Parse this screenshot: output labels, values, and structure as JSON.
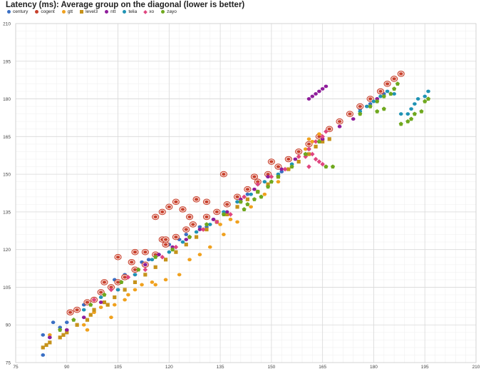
{
  "chart_data": {
    "type": "scatter",
    "title": "Latency (ms): Average group on the diagonal (lower is better)",
    "xlabel": "",
    "ylabel": "",
    "xlim": [
      75,
      210
    ],
    "ylim": [
      75,
      210
    ],
    "xticks": [
      75,
      90,
      105,
      120,
      135,
      150,
      165,
      180,
      195,
      210
    ],
    "yticks": [
      75,
      90,
      105,
      120,
      135,
      150,
      165,
      180,
      195,
      210
    ],
    "grid": true,
    "legend_position": "top-left",
    "series": [
      {
        "name": "century",
        "color": "#3a6fc4",
        "marker": "circle",
        "points": [
          [
            83,
            78
          ],
          [
            83,
            86
          ],
          [
            85,
            85
          ],
          [
            86,
            91
          ],
          [
            88,
            89
          ],
          [
            90,
            91
          ],
          [
            93,
            96
          ],
          [
            95,
            98
          ],
          [
            100,
            103
          ],
          [
            104,
            108
          ],
          [
            107,
            110
          ],
          [
            112,
            115
          ],
          [
            114,
            116
          ],
          [
            117,
            118
          ],
          [
            120,
            122
          ],
          [
            123,
            124
          ],
          [
            125,
            126
          ],
          [
            129,
            129
          ],
          [
            131,
            129
          ],
          [
            133,
            132
          ],
          [
            137,
            134
          ],
          [
            140,
            139
          ],
          [
            143,
            142
          ],
          [
            146,
            146
          ],
          [
            149,
            149
          ],
          [
            153,
            151
          ],
          [
            156,
            154
          ],
          [
            160,
            158
          ],
          [
            176,
            176
          ],
          [
            179,
            178
          ],
          [
            181,
            180
          ],
          [
            183,
            182
          ]
        ]
      },
      {
        "name": "cogent",
        "color": "#c7402c",
        "marker": "ring",
        "points": [
          [
            91,
            95
          ],
          [
            93,
            96
          ],
          [
            96,
            99
          ],
          [
            98,
            100
          ],
          [
            100,
            103
          ],
          [
            103,
            105
          ],
          [
            105,
            107
          ],
          [
            107,
            109
          ],
          [
            110,
            112
          ],
          [
            113,
            114
          ],
          [
            116,
            118
          ],
          [
            119,
            122
          ],
          [
            122,
            125
          ],
          [
            125,
            128
          ],
          [
            127,
            130
          ],
          [
            131,
            133
          ],
          [
            134,
            135
          ],
          [
            137,
            138
          ],
          [
            140,
            141
          ],
          [
            143,
            144
          ],
          [
            146,
            147
          ],
          [
            149,
            150
          ],
          [
            152,
            153
          ],
          [
            155,
            156
          ],
          [
            158,
            159
          ],
          [
            161,
            162
          ],
          [
            164,
            165
          ],
          [
            167,
            168
          ],
          [
            170,
            171
          ],
          [
            173,
            174
          ],
          [
            176,
            177
          ],
          [
            179,
            180
          ],
          [
            182,
            183
          ],
          [
            184,
            186
          ],
          [
            186,
            188
          ],
          [
            188,
            190
          ],
          [
            116,
            133
          ],
          [
            118,
            135
          ],
          [
            120,
            137
          ],
          [
            122,
            139
          ],
          [
            124,
            136
          ],
          [
            126,
            133
          ],
          [
            128,
            140
          ],
          [
            131,
            139
          ],
          [
            136,
            150
          ],
          [
            145,
            149
          ],
          [
            150,
            155
          ],
          [
            101,
            107
          ],
          [
            109,
            115
          ],
          [
            113,
            119
          ],
          [
            118,
            124
          ],
          [
            110,
            119
          ],
          [
            119,
            124
          ],
          [
            105,
            117
          ]
        ]
      },
      {
        "name": "gtt",
        "color": "#f0a11e",
        "marker": "circle",
        "points": [
          [
            85,
            86
          ],
          [
            90,
            88
          ],
          [
            95,
            90
          ],
          [
            98,
            95
          ],
          [
            100,
            97
          ],
          [
            104,
            98
          ],
          [
            108,
            102
          ],
          [
            110,
            104
          ],
          [
            112,
            106
          ],
          [
            115,
            107
          ],
          [
            119,
            108
          ],
          [
            123,
            110
          ],
          [
            126,
            116
          ],
          [
            129,
            118
          ],
          [
            132,
            121
          ],
          [
            136,
            126
          ],
          [
            140,
            131
          ],
          [
            144,
            137
          ],
          [
            148,
            142
          ],
          [
            152,
            147
          ],
          [
            155,
            152
          ],
          [
            158,
            157
          ],
          [
            160,
            160
          ],
          [
            161,
            164
          ],
          [
            162,
            163
          ],
          [
            164,
            166
          ],
          [
            130,
            128
          ],
          [
            135,
            130
          ],
          [
            138,
            132
          ],
          [
            116,
            106
          ],
          [
            107,
            100
          ],
          [
            103,
            93
          ],
          [
            96,
            88
          ]
        ]
      },
      {
        "name": "level3",
        "color": "#c6921a",
        "marker": "square",
        "points": [
          [
            83,
            81
          ],
          [
            85,
            83
          ],
          [
            88,
            85
          ],
          [
            90,
            87
          ],
          [
            93,
            90
          ],
          [
            96,
            92
          ],
          [
            98,
            96
          ],
          [
            101,
            99
          ],
          [
            104,
            101
          ],
          [
            107,
            104
          ],
          [
            110,
            107
          ],
          [
            113,
            110
          ],
          [
            116,
            113
          ],
          [
            119,
            116
          ],
          [
            122,
            119
          ],
          [
            125,
            122
          ],
          [
            128,
            125
          ],
          [
            131,
            128
          ],
          [
            134,
            131
          ],
          [
            137,
            134
          ],
          [
            140,
            137
          ],
          [
            143,
            140
          ],
          [
            146,
            143
          ],
          [
            149,
            146
          ],
          [
            152,
            149
          ],
          [
            155,
            152
          ],
          [
            158,
            155
          ],
          [
            161,
            158
          ],
          [
            163,
            161
          ],
          [
            165,
            163
          ],
          [
            167,
            164
          ],
          [
            84,
            82
          ],
          [
            89,
            86
          ],
          [
            97,
            94
          ],
          [
            102,
            98
          ]
        ]
      },
      {
        "name": "ntt",
        "color": "#8f1d9b",
        "marker": "circle",
        "points": [
          [
            85,
            85
          ],
          [
            90,
            88
          ],
          [
            95,
            93
          ],
          [
            100,
            99
          ],
          [
            105,
            104
          ],
          [
            110,
            110
          ],
          [
            113,
            114
          ],
          [
            117,
            118
          ],
          [
            121,
            121
          ],
          [
            125,
            124
          ],
          [
            129,
            128
          ],
          [
            133,
            132
          ],
          [
            137,
            135
          ],
          [
            141,
            140
          ],
          [
            145,
            144
          ],
          [
            149,
            149
          ],
          [
            153,
            152
          ],
          [
            157,
            156
          ],
          [
            161,
            160
          ],
          [
            165,
            164
          ],
          [
            170,
            169
          ],
          [
            174,
            172
          ],
          [
            178,
            177
          ],
          [
            181,
            180
          ],
          [
            162,
            181
          ],
          [
            163,
            182
          ],
          [
            164,
            183
          ],
          [
            165,
            184
          ],
          [
            166,
            185
          ],
          [
            161,
            180
          ]
        ]
      },
      {
        "name": "telia",
        "color": "#1f93b4",
        "marker": "circle",
        "points": [
          [
            95,
            96
          ],
          [
            100,
            101
          ],
          [
            105,
            104
          ],
          [
            110,
            110
          ],
          [
            115,
            116
          ],
          [
            120,
            119
          ],
          [
            124,
            123
          ],
          [
            128,
            127
          ],
          [
            132,
            130
          ],
          [
            136,
            135
          ],
          [
            140,
            139
          ],
          [
            144,
            142
          ],
          [
            148,
            147
          ],
          [
            152,
            150
          ],
          [
            156,
            154
          ],
          [
            160,
            158
          ],
          [
            176,
            175
          ],
          [
            178,
            177
          ],
          [
            180,
            179
          ],
          [
            182,
            181
          ],
          [
            184,
            183
          ],
          [
            186,
            182
          ],
          [
            188,
            174
          ],
          [
            190,
            174
          ],
          [
            191,
            176
          ],
          [
            192,
            178
          ],
          [
            193,
            180
          ],
          [
            195,
            181
          ],
          [
            196,
            183
          ]
        ]
      },
      {
        "name": "xo",
        "color": "#e0457f",
        "marker": "diamond",
        "points": [
          [
            98,
            100
          ],
          [
            103,
            104
          ],
          [
            108,
            109
          ],
          [
            113,
            112
          ],
          [
            118,
            117
          ],
          [
            122,
            121
          ],
          [
            126,
            125
          ],
          [
            130,
            128
          ],
          [
            134,
            131
          ],
          [
            138,
            134
          ],
          [
            142,
            141
          ],
          [
            146,
            146
          ],
          [
            150,
            149
          ],
          [
            154,
            152
          ],
          [
            158,
            157
          ],
          [
            161,
            160
          ],
          [
            163,
            163
          ],
          [
            165,
            165
          ],
          [
            166,
            167
          ],
          [
            162,
            158
          ],
          [
            163,
            156
          ],
          [
            164,
            155
          ],
          [
            165,
            154
          ],
          [
            161,
            153
          ],
          [
            160,
            157
          ]
        ]
      },
      {
        "name": "zayo",
        "color": "#6fa81e",
        "marker": "pentagon",
        "points": [
          [
            88,
            88
          ],
          [
            92,
            92
          ],
          [
            97,
            98
          ],
          [
            101,
            102
          ],
          [
            106,
            107
          ],
          [
            111,
            112
          ],
          [
            116,
            117
          ],
          [
            121,
            120
          ],
          [
            126,
            125
          ],
          [
            131,
            130
          ],
          [
            136,
            134
          ],
          [
            141,
            139
          ],
          [
            146,
            143
          ],
          [
            149,
            145
          ],
          [
            150,
            147
          ],
          [
            152,
            149
          ],
          [
            142,
            136
          ],
          [
            143,
            138
          ],
          [
            145,
            140
          ],
          [
            147,
            141
          ],
          [
            156,
            153
          ],
          [
            160,
            158
          ],
          [
            164,
            163
          ],
          [
            166,
            153
          ],
          [
            168,
            153
          ],
          [
            176,
            174
          ],
          [
            179,
            177
          ],
          [
            181,
            179
          ],
          [
            183,
            181
          ],
          [
            185,
            182
          ],
          [
            186,
            184
          ],
          [
            187,
            186
          ],
          [
            188,
            170
          ],
          [
            190,
            171
          ],
          [
            191,
            172
          ],
          [
            192,
            174
          ],
          [
            194,
            175
          ],
          [
            195,
            179
          ],
          [
            196,
            180
          ],
          [
            183,
            176
          ],
          [
            181,
            175
          ]
        ]
      }
    ]
  }
}
